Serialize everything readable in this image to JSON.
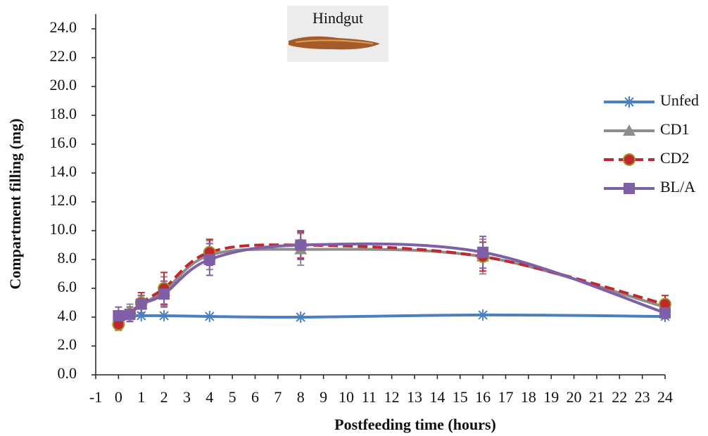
{
  "chart_data": {
    "type": "line",
    "y_label": "Compartment filling (mg)",
    "x_label": "Postfeeding time (hours)",
    "inset_label": "Hindgut",
    "xlim": [
      -1,
      24
    ],
    "xticks": [
      -1,
      0,
      1,
      2,
      3,
      4,
      5,
      6,
      7,
      8,
      9,
      10,
      11,
      12,
      13,
      14,
      15,
      16,
      17,
      18,
      19,
      20,
      21,
      22,
      23,
      24
    ],
    "ylim": [
      0,
      24
    ],
    "yticks": [
      {
        "value": 0,
        "label": "0.0"
      },
      {
        "value": 2,
        "label": "2.0"
      },
      {
        "value": 4,
        "label": "4.0"
      },
      {
        "value": 6,
        "label": "6.0"
      },
      {
        "value": 8,
        "label": "8.0"
      },
      {
        "value": 10,
        "label": "10.0"
      },
      {
        "value": 12,
        "label": "12.0"
      },
      {
        "value": 14,
        "label": "14.0"
      },
      {
        "value": 16,
        "label": "16.0"
      },
      {
        "value": 18,
        "label": "18.0"
      },
      {
        "value": 20,
        "label": "20.0"
      },
      {
        "value": 22,
        "label": "22.0"
      },
      {
        "value": 24,
        "label": "24.0"
      }
    ],
    "legend": "right",
    "x": [
      0,
      0.5,
      1,
      2,
      4,
      8,
      16,
      24
    ],
    "series": [
      {
        "name": "Unfed",
        "color": "#4a7fc1",
        "marker": "asterisk",
        "dashed": false,
        "values": [
          4.0,
          4.1,
          4.1,
          4.1,
          4.05,
          4.0,
          4.15,
          4.05
        ]
      },
      {
        "name": "CD1",
        "color": "#8c8c8c",
        "marker": "triangle",
        "dashed": false,
        "values": [
          3.8,
          4.3,
          4.9,
          5.8,
          8.3,
          8.7,
          8.2,
          4.7
        ],
        "errors": [
          0.5,
          0.6,
          0.6,
          1.0,
          1.0,
          1.1,
          1.2,
          0.5
        ]
      },
      {
        "name": "CD2",
        "color": "#c0282d",
        "marker": "circle",
        "dashed": true,
        "values": [
          3.5,
          4.2,
          5.0,
          6.0,
          8.5,
          9.0,
          8.2,
          4.9
        ],
        "errors": [
          0.4,
          0.5,
          0.7,
          1.1,
          0.9,
          0.9,
          1.0,
          0.6
        ]
      },
      {
        "name": "BL/A",
        "color": "#7f5fa8",
        "marker": "square",
        "dashed": false,
        "values": [
          4.1,
          4.2,
          4.9,
          5.6,
          8.0,
          9.0,
          8.5,
          4.3
        ],
        "errors": [
          0.6,
          0.5,
          0.6,
          0.9,
          1.1,
          1.0,
          1.1,
          0.4
        ]
      }
    ]
  }
}
